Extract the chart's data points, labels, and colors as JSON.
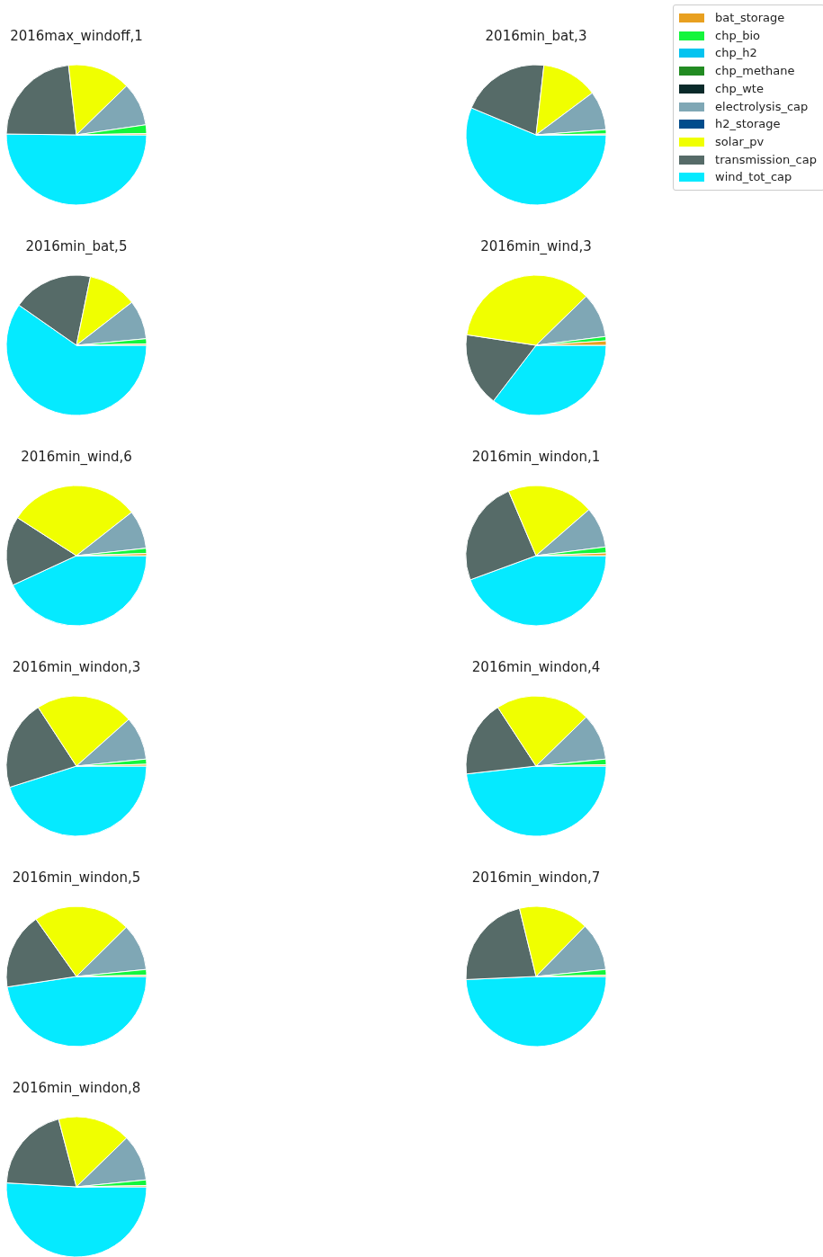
{
  "chart_data": [
    {
      "type": "pie",
      "title": "2016max_windoff,1",
      "categories": [
        null,
        null,
        null,
        null,
        null,
        null,
        null,
        null,
        null,
        null
      ],
      "colors": [
        "#e8a020",
        "#14f53c",
        "#03c3f0",
        "#228b22",
        "#0a2a2a",
        "#7fa7b5",
        "#004c8c",
        "#f0ff00",
        "#566b68",
        "#05eaff"
      ],
      "values": [
        0.3,
        2,
        0,
        0,
        0,
        10,
        0,
        14.5,
        23,
        50.2
      ]
    },
    {
      "type": "pie",
      "title": "2016min_bat,3",
      "legend": "top right",
      "categories": [
        "bat_storage",
        "chp_bio",
        "chp_h2",
        "chp_methane",
        "chp_wte",
        "electrolysis_cap",
        "h2_storage",
        "solar_pv",
        "transmission_cap",
        "wind_tot_cap"
      ],
      "colors": [
        "#e8a020",
        "#14f53c",
        "#03c3f0",
        "#228b22",
        "#0a2a2a",
        "#7fa7b5",
        "#004c8c",
        "#f0ff00",
        "#566b68",
        "#05eaff"
      ],
      "values": [
        0.2,
        1,
        0,
        0,
        0,
        9,
        0,
        13,
        20.5,
        56.3
      ]
    },
    {
      "type": "pie",
      "title": "2016min_bat,5",
      "categories": [
        null,
        null,
        null,
        null,
        null,
        null,
        null,
        null,
        null,
        null
      ],
      "colors": [
        "#e8a020",
        "#14f53c",
        "#03c3f0",
        "#228b22",
        "#0a2a2a",
        "#7fa7b5",
        "#004c8c",
        "#f0ff00",
        "#566b68",
        "#05eaff"
      ],
      "values": [
        0.3,
        1.2,
        0,
        0,
        0,
        9,
        0,
        11.3,
        18.5,
        59.7
      ]
    },
    {
      "type": "pie",
      "title": "2016min_wind,3",
      "categories": [
        null,
        null,
        null,
        null,
        null,
        null,
        null,
        null,
        null,
        null
      ],
      "colors": [
        "#e8a020",
        "#14f53c",
        "#03c3f0",
        "#228b22",
        "#0a2a2a",
        "#7fa7b5",
        "#004c8c",
        "#f0ff00",
        "#566b68",
        "#05eaff"
      ],
      "values": [
        1,
        1,
        0,
        0,
        0,
        10.3,
        0,
        35.3,
        17,
        35.4
      ]
    },
    {
      "type": "pie",
      "title": "2016min_wind,6",
      "categories": [
        null,
        null,
        null,
        null,
        null,
        null,
        null,
        null,
        null,
        null
      ],
      "colors": [
        "#e8a020",
        "#14f53c",
        "#03c3f0",
        "#228b22",
        "#0a2a2a",
        "#7fa7b5",
        "#004c8c",
        "#f0ff00",
        "#566b68",
        "#05eaff"
      ],
      "values": [
        0.5,
        1.2,
        0,
        0,
        0,
        8.9,
        0,
        30.3,
        16,
        43.1
      ]
    },
    {
      "type": "pie",
      "title": "2016min_windon,1",
      "categories": [
        null,
        null,
        null,
        null,
        null,
        null,
        null,
        null,
        null,
        null
      ],
      "colors": [
        "#e8a020",
        "#14f53c",
        "#03c3f0",
        "#228b22",
        "#0a2a2a",
        "#7fa7b5",
        "#004c8c",
        "#f0ff00",
        "#566b68",
        "#05eaff"
      ],
      "values": [
        0.6,
        1.4,
        0,
        0,
        0,
        9.4,
        0,
        20,
        24.2,
        44.4
      ]
    },
    {
      "type": "pie",
      "title": "2016min_windon,3",
      "categories": [
        null,
        null,
        null,
        null,
        null,
        null,
        null,
        null,
        null,
        null
      ],
      "colors": [
        "#e8a020",
        "#14f53c",
        "#03c3f0",
        "#228b22",
        "#0a2a2a",
        "#7fa7b5",
        "#004c8c",
        "#f0ff00",
        "#566b68",
        "#05eaff"
      ],
      "values": [
        0.4,
        1.2,
        0,
        0,
        0,
        10,
        0,
        22.6,
        20.7,
        45.1
      ]
    },
    {
      "type": "pie",
      "title": "2016min_windon,4",
      "categories": [
        null,
        null,
        null,
        null,
        null,
        null,
        null,
        null,
        null,
        null
      ],
      "colors": [
        "#e8a020",
        "#14f53c",
        "#03c3f0",
        "#228b22",
        "#0a2a2a",
        "#7fa7b5",
        "#004c8c",
        "#f0ff00",
        "#566b68",
        "#05eaff"
      ],
      "values": [
        0.3,
        1.3,
        0,
        0,
        0,
        10.7,
        0,
        21.9,
        17.6,
        48.2
      ]
    },
    {
      "type": "pie",
      "title": "2016min_windon,5",
      "categories": [
        null,
        null,
        null,
        null,
        null,
        null,
        null,
        null,
        null,
        null
      ],
      "colors": [
        "#e8a020",
        "#14f53c",
        "#03c3f0",
        "#228b22",
        "#0a2a2a",
        "#7fa7b5",
        "#004c8c",
        "#f0ff00",
        "#566b68",
        "#05eaff"
      ],
      "values": [
        0.3,
        1.3,
        0,
        0,
        0,
        10.8,
        0,
        22.4,
        17.6,
        47.6
      ]
    },
    {
      "type": "pie",
      "title": "2016min_windon,7",
      "categories": [
        null,
        null,
        null,
        null,
        null,
        null,
        null,
        null,
        null,
        null
      ],
      "colors": [
        "#e8a020",
        "#14f53c",
        "#03c3f0",
        "#228b22",
        "#0a2a2a",
        "#7fa7b5",
        "#004c8c",
        "#f0ff00",
        "#566b68",
        "#05eaff"
      ],
      "values": [
        0.3,
        1.3,
        0,
        0,
        0,
        11.1,
        0,
        16.1,
        21.9,
        49.3
      ]
    },
    {
      "type": "pie",
      "title": "2016min_windon,8",
      "categories": [
        null,
        null,
        null,
        null,
        null,
        null,
        null,
        null,
        null,
        null
      ],
      "colors": [
        "#e8a020",
        "#14f53c",
        "#03c3f0",
        "#228b22",
        "#0a2a2a",
        "#7fa7b5",
        "#004c8c",
        "#f0ff00",
        "#566b68",
        "#05eaff"
      ],
      "values": [
        0.3,
        1.3,
        0,
        0,
        0,
        10.7,
        0,
        16.8,
        20,
        50.9
      ]
    }
  ]
}
